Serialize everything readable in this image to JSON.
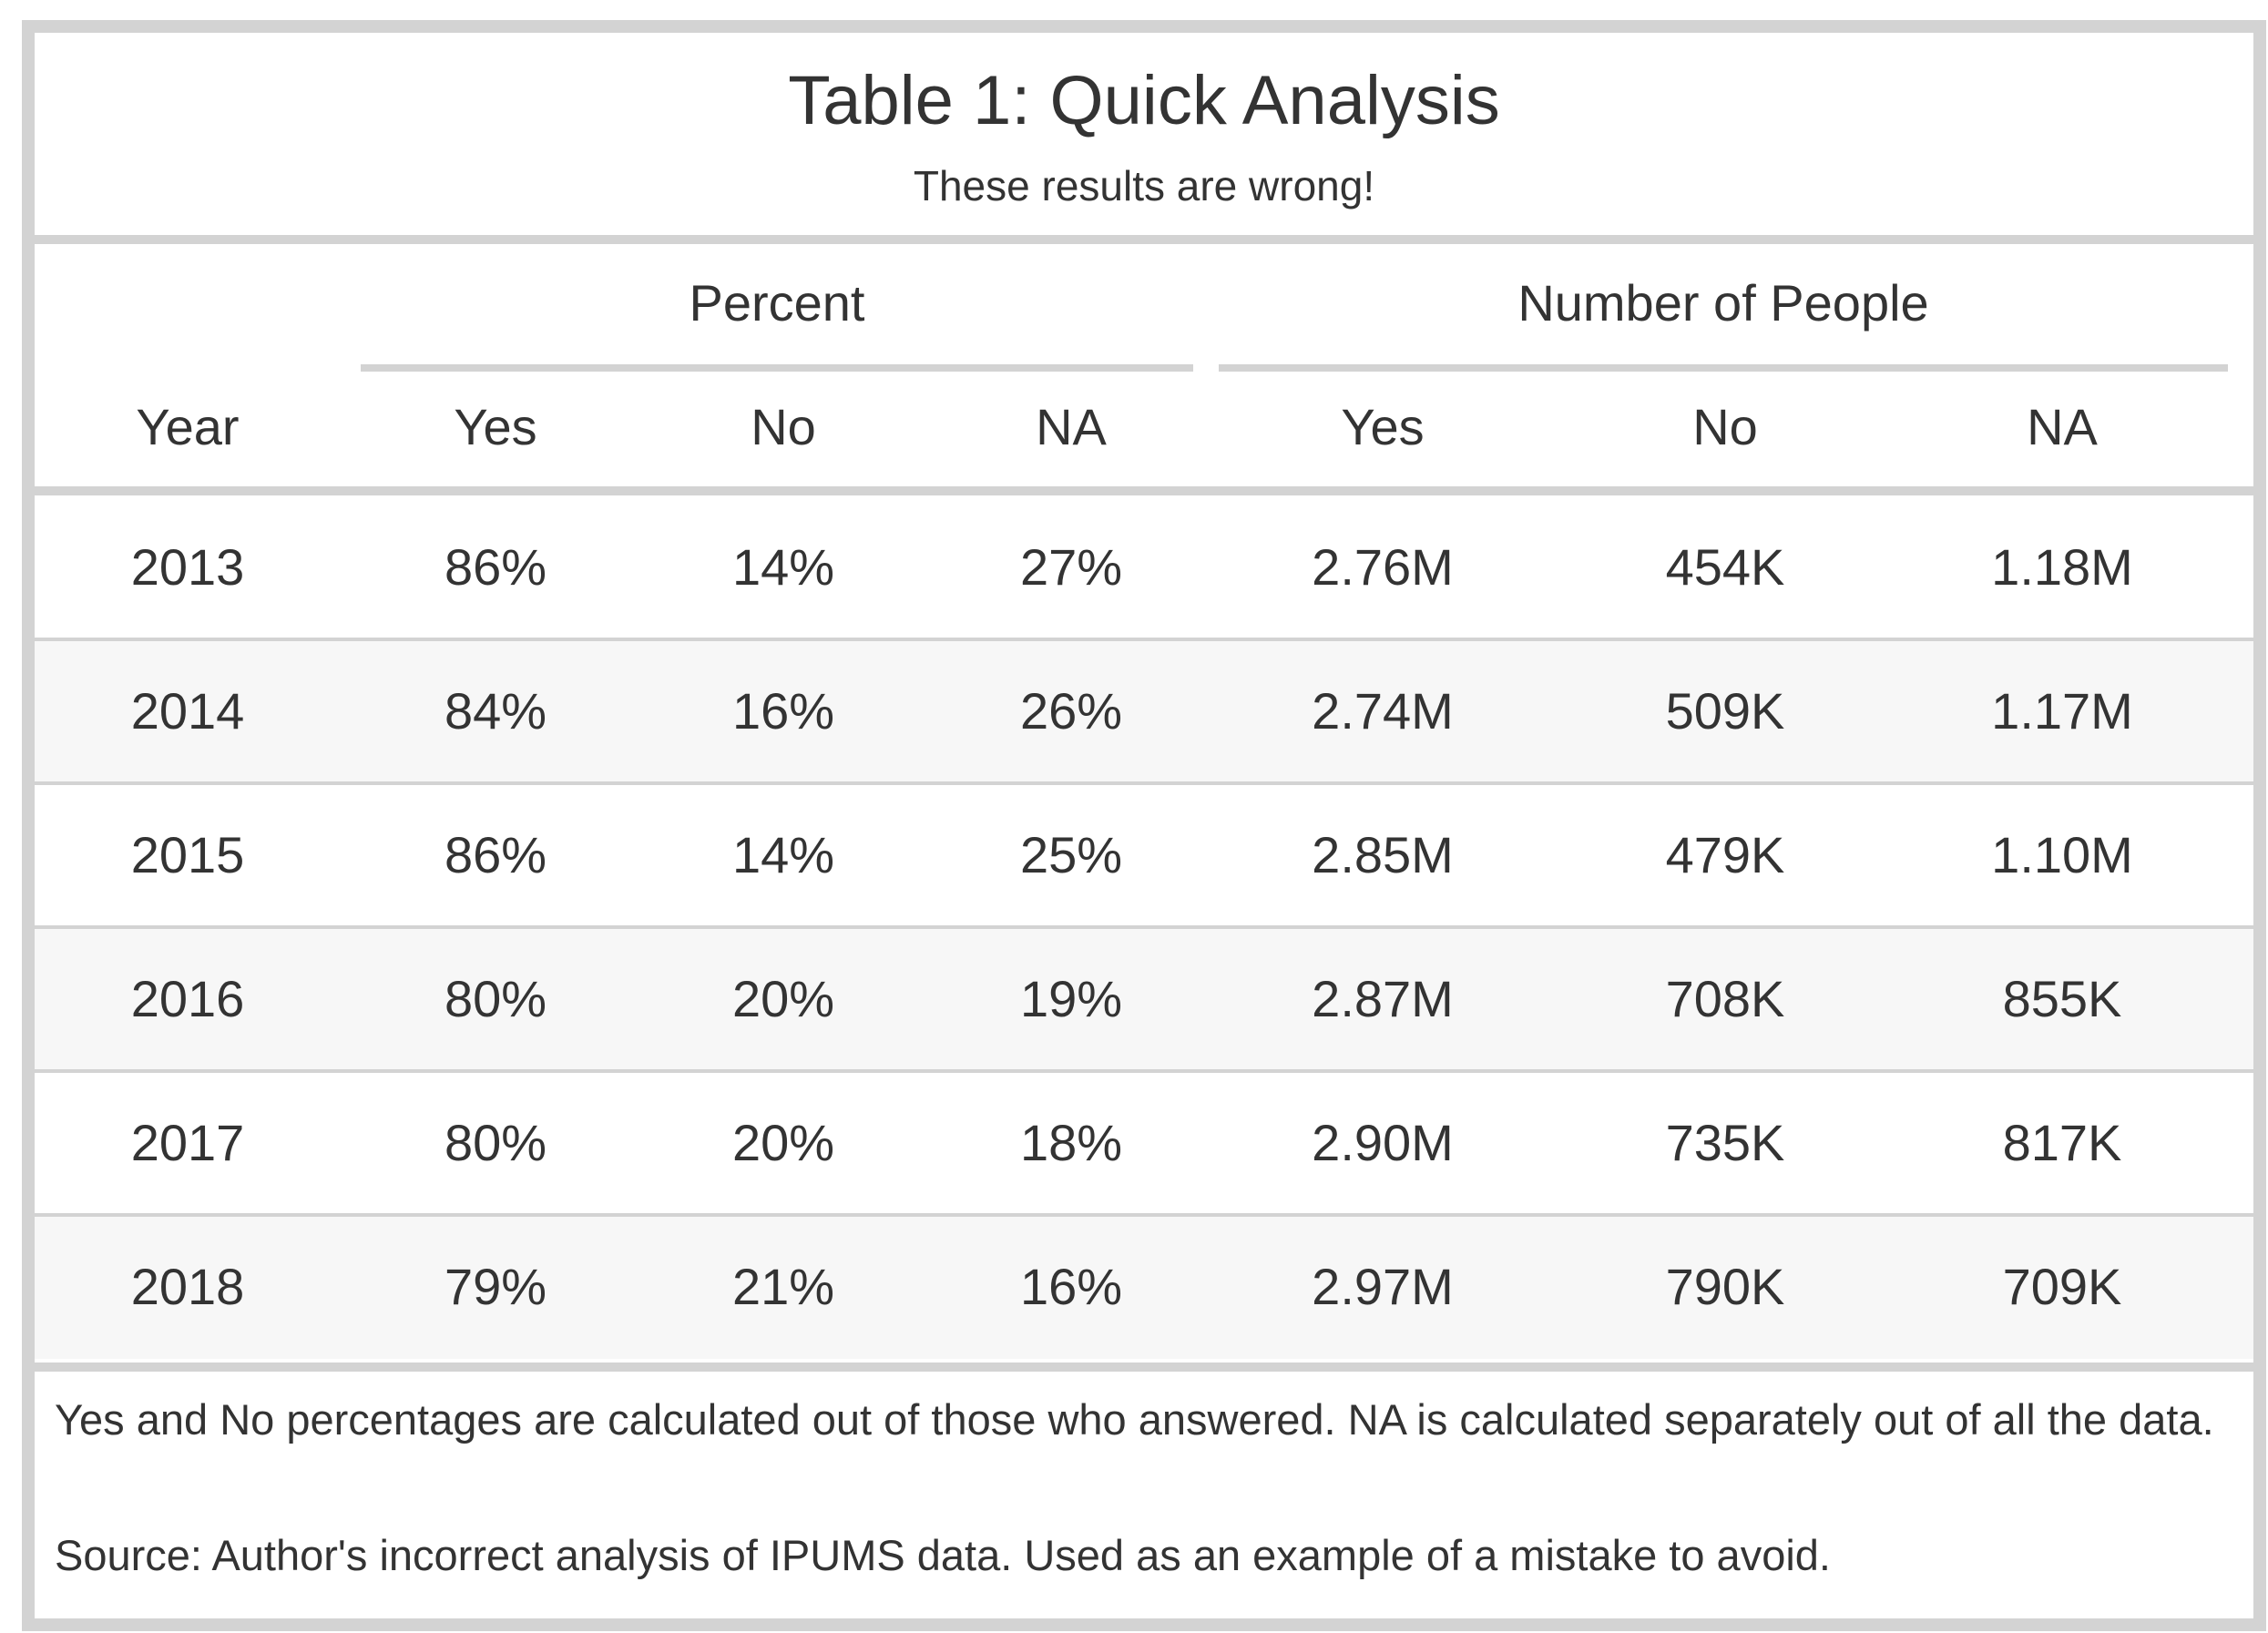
{
  "chart_data": {
    "type": "table",
    "title": "Table 1: Quick Analysis",
    "subtitle": "These results are wrong!",
    "spanners": [
      {
        "label": "Percent",
        "columns": [
          "Yes",
          "No",
          "NA"
        ]
      },
      {
        "label": "Number of People",
        "columns": [
          "Yes",
          "No",
          "NA"
        ]
      }
    ],
    "columns": [
      "Year",
      "Yes",
      "No",
      "NA",
      "Yes",
      "No",
      "NA"
    ],
    "rows": [
      [
        "2013",
        "86%",
        "14%",
        "27%",
        "2.76M",
        "454K",
        "1.18M"
      ],
      [
        "2014",
        "84%",
        "16%",
        "26%",
        "2.74M",
        "509K",
        "1.17M"
      ],
      [
        "2015",
        "86%",
        "14%",
        "25%",
        "2.85M",
        "479K",
        "1.10M"
      ],
      [
        "2016",
        "80%",
        "20%",
        "19%",
        "2.87M",
        "708K",
        "855K"
      ],
      [
        "2017",
        "80%",
        "20%",
        "18%",
        "2.90M",
        "735K",
        "817K"
      ],
      [
        "2018",
        "79%",
        "21%",
        "16%",
        "2.97M",
        "790K",
        "709K"
      ]
    ],
    "footnotes": [
      "Yes and No percentages are calculated out of those who answered. NA is calculated separately out of all the data.",
      "Source: Author's incorrect analysis of IPUMS data. Used as an example of a mistake to avoid."
    ],
    "colors": {
      "border": "#d3d3d3",
      "striped_row": "#f7f7f7",
      "text": "#333333"
    }
  }
}
